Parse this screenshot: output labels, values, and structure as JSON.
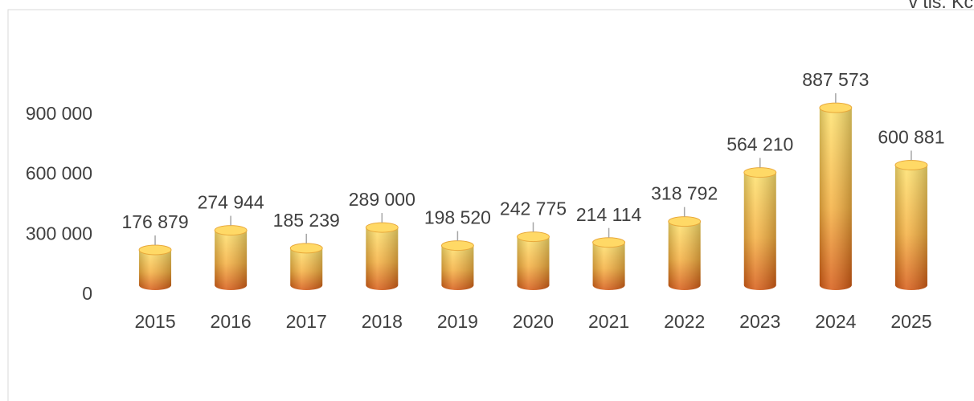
{
  "chart_data": {
    "type": "bar",
    "unit_label": "v tis. Kč",
    "categories": [
      "2015",
      "2016",
      "2017",
      "2018",
      "2019",
      "2020",
      "2021",
      "2022",
      "2023",
      "2024",
      "2025"
    ],
    "values": [
      176879,
      274944,
      185239,
      289000,
      198520,
      242775,
      214114,
      318792,
      564210,
      887573,
      600881
    ],
    "value_labels": [
      "176 879",
      "274 944",
      "185 239",
      "289 000",
      "198 520",
      "242 775",
      "214 114",
      "318 792",
      "564 210",
      "887 573",
      "600 881"
    ],
    "color": "#f5b83a",
    "ylim": [
      0,
      900000
    ],
    "yticks": [
      0,
      {
        "value": 300000,
        "label": "300 000"
      },
      {
        "value": 600000,
        "label": "600 000"
      },
      {
        "value": 900000,
        "label": "900 000"
      }
    ],
    "grid": false
  }
}
